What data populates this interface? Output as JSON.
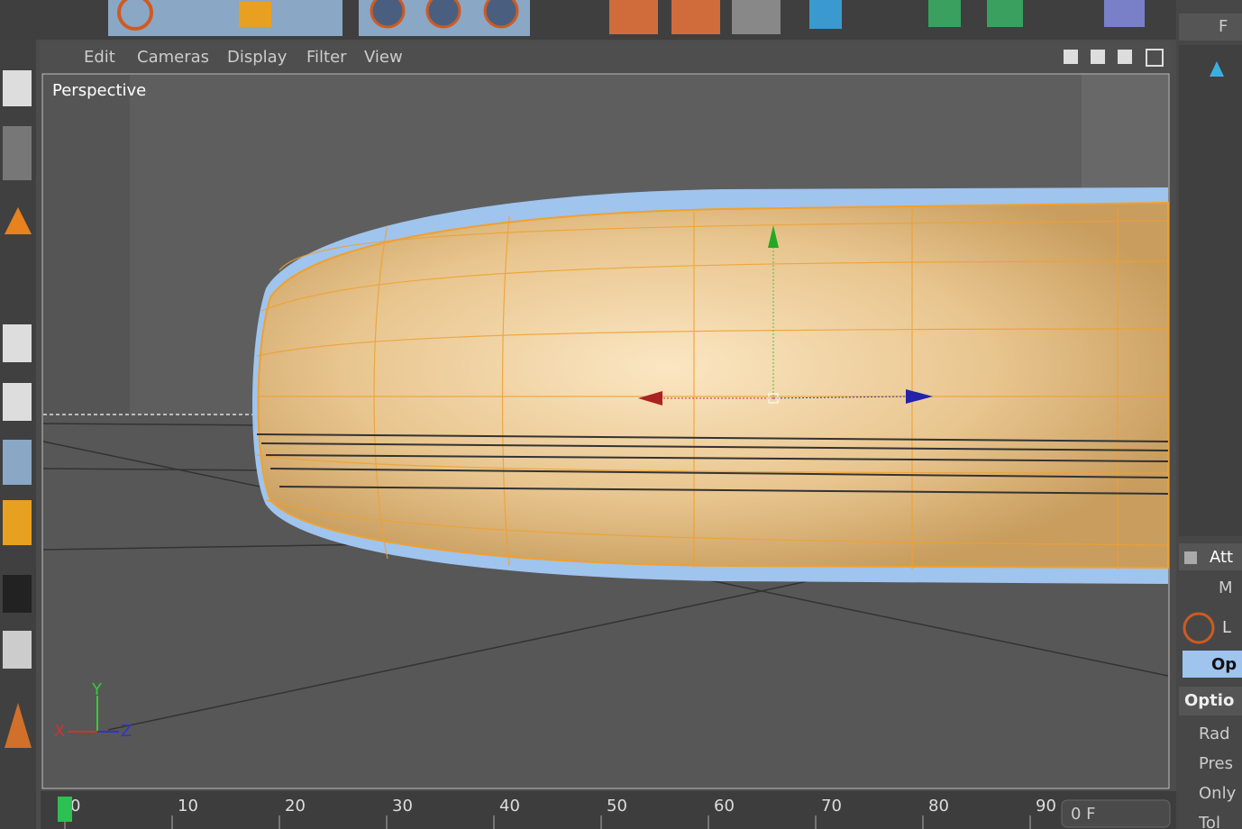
{
  "menu": [
    "Edit",
    "Cameras",
    "Display",
    "Filter",
    "View"
  ],
  "viewport": {
    "label": "Perspective",
    "axes": [
      "Y",
      "X",
      "Z"
    ]
  },
  "timeline": {
    "ticks": [
      0,
      10,
      20,
      30,
      40,
      50,
      60,
      70,
      80,
      90
    ],
    "frame": "0 F"
  },
  "right_panel": {
    "header": "F",
    "attributes_tab": "Att",
    "mode_menu": "M",
    "object_name": "L",
    "tab": "Op",
    "section": "Optio",
    "fields": [
      "Rad",
      "Pres",
      "Only",
      "Tol"
    ]
  }
}
